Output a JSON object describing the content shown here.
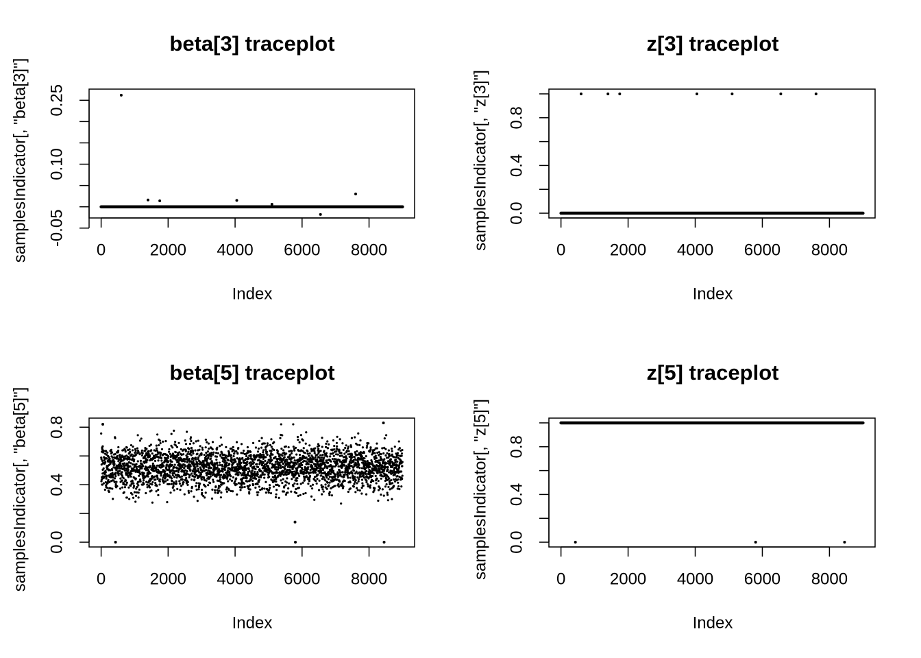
{
  "chart_data": [
    {
      "type": "scatter",
      "title": "beta[3] traceplot",
      "xlabel": "Index",
      "ylabel": "samplesIndicator[, \"beta[3]\"]",
      "xlim": [
        0,
        9000
      ],
      "ylim": [
        -0.015,
        0.265
      ],
      "xticks": [
        "0",
        "2000",
        "4000",
        "6000",
        "8000"
      ],
      "xtick_values": [
        0,
        2000,
        4000,
        6000,
        8000
      ],
      "yticks": [
        "-0.05",
        "0.10",
        "0.25"
      ],
      "ytick_values": [
        -0.05,
        0.1,
        0.25
      ],
      "yminor": [
        -0.05,
        0.0,
        0.05,
        0.1,
        0.15,
        0.2,
        0.25
      ],
      "grid": false,
      "baseline": {
        "value": 0.0,
        "from": 0,
        "to": 9000
      },
      "points": [
        {
          "x": 600,
          "y": 0.262
        },
        {
          "x": 1400,
          "y": 0.016
        },
        {
          "x": 1750,
          "y": 0.014
        },
        {
          "x": 4050,
          "y": 0.015
        },
        {
          "x": 5100,
          "y": 0.006
        },
        {
          "x": 6550,
          "y": -0.018
        },
        {
          "x": 7600,
          "y": 0.03
        }
      ]
    },
    {
      "type": "scatter",
      "title": "z[3] traceplot",
      "xlabel": "Index",
      "ylabel": "samplesIndicator[, \"z[3]\"]",
      "xlim": [
        0,
        9000
      ],
      "ylim": [
        0,
        1
      ],
      "xticks": [
        "0",
        "2000",
        "4000",
        "6000",
        "8000"
      ],
      "xtick_values": [
        0,
        2000,
        4000,
        6000,
        8000
      ],
      "yticks": [
        "0.0",
        "0.4",
        "0.8"
      ],
      "ytick_values": [
        0.0,
        0.4,
        0.8
      ],
      "yminor": [
        0.0,
        0.2,
        0.4,
        0.6,
        0.8,
        1.0
      ],
      "grid": false,
      "baseline": {
        "value": 0.0,
        "from": 0,
        "to": 9000
      },
      "points": [
        {
          "x": 600,
          "y": 1
        },
        {
          "x": 1400,
          "y": 1
        },
        {
          "x": 1750,
          "y": 1
        },
        {
          "x": 4050,
          "y": 1
        },
        {
          "x": 5100,
          "y": 1
        },
        {
          "x": 6550,
          "y": 1
        },
        {
          "x": 7600,
          "y": 1
        }
      ]
    },
    {
      "type": "scatter",
      "title": "beta[5] traceplot",
      "xlabel": "Index",
      "ylabel": "samplesIndicator[, \"beta[5]\"]",
      "xlim": [
        0,
        9000
      ],
      "ylim": [
        0,
        0.83
      ],
      "xticks": [
        "0",
        "2000",
        "4000",
        "6000",
        "8000"
      ],
      "xtick_values": [
        0,
        2000,
        4000,
        6000,
        8000
      ],
      "yticks": [
        "0.0",
        "0.4",
        "0.8"
      ],
      "ytick_values": [
        0.0,
        0.4,
        0.8
      ],
      "yminor": [
        0.0,
        0.2,
        0.4,
        0.6,
        0.8
      ],
      "grid": false,
      "cloud": {
        "n": 9000,
        "center": 0.52,
        "sd": 0.085,
        "min": 0.2,
        "max": 0.82
      },
      "points": [
        {
          "x": 430,
          "y": 0.0
        },
        {
          "x": 5800,
          "y": 0.0
        },
        {
          "x": 5790,
          "y": 0.14
        },
        {
          "x": 8450,
          "y": 0.0
        },
        {
          "x": 8430,
          "y": 0.83
        },
        {
          "x": 50,
          "y": 0.82
        }
      ]
    },
    {
      "type": "scatter",
      "title": "z[5] traceplot",
      "xlabel": "Index",
      "ylabel": "samplesIndicator[, \"z[5]\"]",
      "xlim": [
        0,
        9000
      ],
      "ylim": [
        0,
        1
      ],
      "xticks": [
        "0",
        "2000",
        "4000",
        "6000",
        "8000"
      ],
      "xtick_values": [
        0,
        2000,
        4000,
        6000,
        8000
      ],
      "yticks": [
        "0.0",
        "0.4",
        "0.8"
      ],
      "ytick_values": [
        0.0,
        0.4,
        0.8
      ],
      "yminor": [
        0.0,
        0.2,
        0.4,
        0.6,
        0.8,
        1.0
      ],
      "grid": false,
      "baseline": {
        "value": 1.0,
        "from": 0,
        "to": 9000
      },
      "points": [
        {
          "x": 430,
          "y": 0
        },
        {
          "x": 5800,
          "y": 0
        },
        {
          "x": 8450,
          "y": 0
        }
      ]
    }
  ]
}
